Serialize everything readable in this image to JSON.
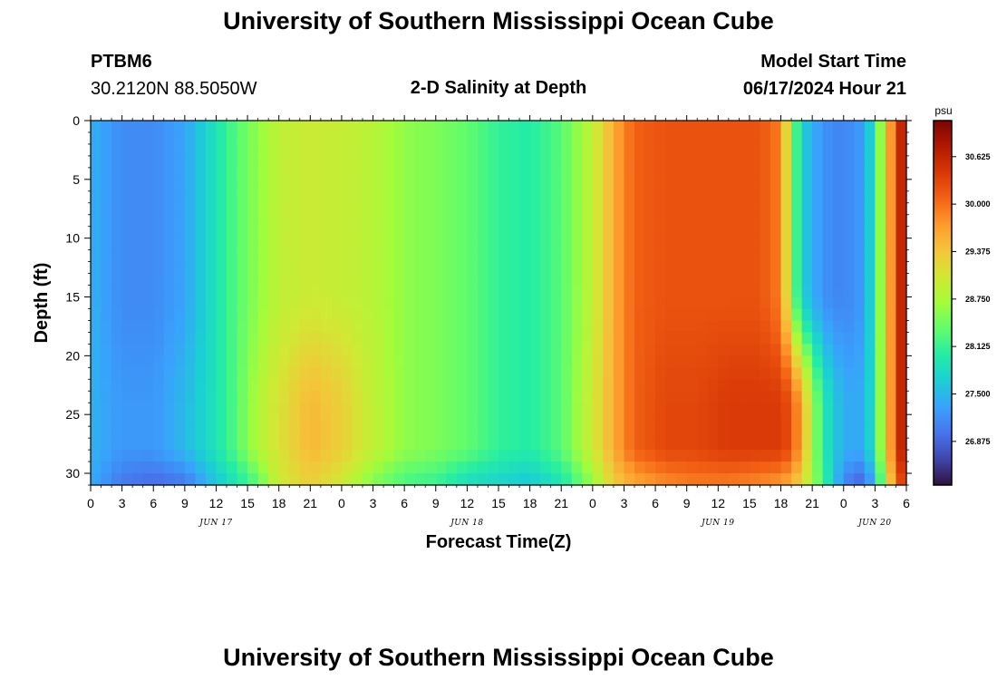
{
  "header": {
    "title": "University of Southern Mississippi Ocean Cube",
    "station_id": "PTBM6",
    "station_coords": "30.2120N  88.5050W",
    "plot_subtitle": "2-D Salinity at Depth",
    "model_start_label": "Model Start Time",
    "model_start_value": "06/17/2024 Hour 21"
  },
  "footer": {
    "title": "University of Southern Mississippi Ocean Cube"
  },
  "chart_data": {
    "type": "heatmap",
    "title": "2-D Salinity at Depth",
    "xlabel": "Forecast Time(Z)",
    "ylabel": "Depth (ft)",
    "x_tick_labels": [
      "0",
      "3",
      "6",
      "9",
      "12",
      "15",
      "18",
      "21",
      "0",
      "3",
      "6",
      "9",
      "12",
      "15",
      "18",
      "21",
      "0",
      "3",
      "6",
      "9",
      "12",
      "15",
      "18",
      "21",
      "0",
      "3",
      "6"
    ],
    "x_range_hours": [
      0,
      78
    ],
    "date_labels": [
      {
        "text": "JUN 17",
        "hour": 12
      },
      {
        "text": "JUN 18",
        "hour": 36
      },
      {
        "text": "JUN 19",
        "hour": 60
      },
      {
        "text": "JUN 20",
        "hour": 75
      }
    ],
    "y_tick_labels": [
      "0",
      "5",
      "10",
      "15",
      "20",
      "25",
      "30"
    ],
    "y_range_ft": [
      0,
      31
    ],
    "colorbar": {
      "unit": "psu",
      "ticks": [
        "30.625",
        "30.000",
        "29.375",
        "28.750",
        "28.125",
        "27.500",
        "26.875"
      ],
      "range": [
        26.3,
        31.1
      ],
      "colors": [
        "#30123b",
        "#4145ab",
        "#4675ed",
        "#39a2fc",
        "#1bcfd4",
        "#24eca6",
        "#61fc6c",
        "#a4fc3b",
        "#d1e834",
        "#f3c63a",
        "#fe9b2d",
        "#f36315",
        "#d93806",
        "#b11901",
        "#7a0402"
      ]
    },
    "profile_columns": [
      {
        "hour": 0,
        "surface": 27.45,
        "mid": 27.45,
        "bottom": 27.4
      },
      {
        "hour": 3,
        "surface": 27.15,
        "mid": 27.25,
        "bottom": 27.0
      },
      {
        "hour": 6,
        "surface": 27.15,
        "mid": 27.25,
        "bottom": 26.9
      },
      {
        "hour": 9,
        "surface": 27.35,
        "mid": 27.5,
        "bottom": 27.0
      },
      {
        "hour": 12,
        "surface": 27.9,
        "mid": 27.9,
        "bottom": 27.6
      },
      {
        "hour": 14,
        "surface": 28.3,
        "mid": 28.3,
        "bottom": 27.9
      },
      {
        "hour": 16,
        "surface": 28.6,
        "mid": 28.8,
        "bottom": 28.3
      },
      {
        "hour": 18,
        "surface": 28.9,
        "mid": 29.1,
        "bottom": 29.0
      },
      {
        "hour": 21,
        "surface": 29.0,
        "mid": 29.5,
        "bottom": 29.3
      },
      {
        "hour": 24,
        "surface": 28.95,
        "mid": 29.3,
        "bottom": 29.0
      },
      {
        "hour": 27,
        "surface": 28.85,
        "mid": 28.9,
        "bottom": 28.5
      },
      {
        "hour": 30,
        "surface": 28.6,
        "mid": 28.6,
        "bottom": 28.2
      },
      {
        "hour": 33,
        "surface": 28.5,
        "mid": 28.5,
        "bottom": 28.1
      },
      {
        "hour": 36,
        "surface": 28.35,
        "mid": 28.35,
        "bottom": 27.8
      },
      {
        "hour": 39,
        "surface": 28.1,
        "mid": 28.1,
        "bottom": 27.7
      },
      {
        "hour": 42,
        "surface": 28.0,
        "mid": 28.0,
        "bottom": 27.6
      },
      {
        "hour": 45,
        "surface": 28.3,
        "mid": 28.3,
        "bottom": 27.9
      },
      {
        "hour": 48,
        "surface": 28.9,
        "mid": 29.0,
        "bottom": 28.6
      },
      {
        "hour": 50,
        "surface": 29.6,
        "mid": 29.6,
        "bottom": 29.3
      },
      {
        "hour": 52,
        "surface": 30.1,
        "mid": 30.1,
        "bottom": 29.6
      },
      {
        "hour": 55,
        "surface": 30.2,
        "mid": 30.3,
        "bottom": 29.8
      },
      {
        "hour": 58,
        "surface": 30.2,
        "mid": 30.3,
        "bottom": 29.9
      },
      {
        "hour": 61,
        "surface": 30.2,
        "mid": 30.4,
        "bottom": 29.9
      },
      {
        "hour": 64,
        "surface": 30.2,
        "mid": 30.4,
        "bottom": 29.8
      },
      {
        "hour": 66,
        "surface": 29.9,
        "mid": 30.4,
        "bottom": 29.7
      },
      {
        "hour": 67,
        "surface": 28.6,
        "mid": 30.2,
        "bottom": 29.5
      },
      {
        "hour": 68,
        "surface": 27.7,
        "mid": 29.6,
        "bottom": 29.2
      },
      {
        "hour": 70,
        "surface": 27.2,
        "mid": 28.0,
        "bottom": 28.2
      },
      {
        "hour": 72,
        "surface": 27.1,
        "mid": 27.4,
        "bottom": 27.1
      },
      {
        "hour": 74,
        "surface": 27.3,
        "mid": 27.4,
        "bottom": 26.8
      },
      {
        "hour": 75,
        "surface": 28.0,
        "mid": 28.0,
        "bottom": 27.6
      },
      {
        "hour": 76,
        "surface": 29.2,
        "mid": 29.2,
        "bottom": 28.8
      },
      {
        "hour": 77,
        "surface": 30.3,
        "mid": 30.3,
        "bottom": 30.0
      },
      {
        "hour": 78,
        "surface": 30.9,
        "mid": 30.9,
        "bottom": 30.5
      }
    ]
  }
}
